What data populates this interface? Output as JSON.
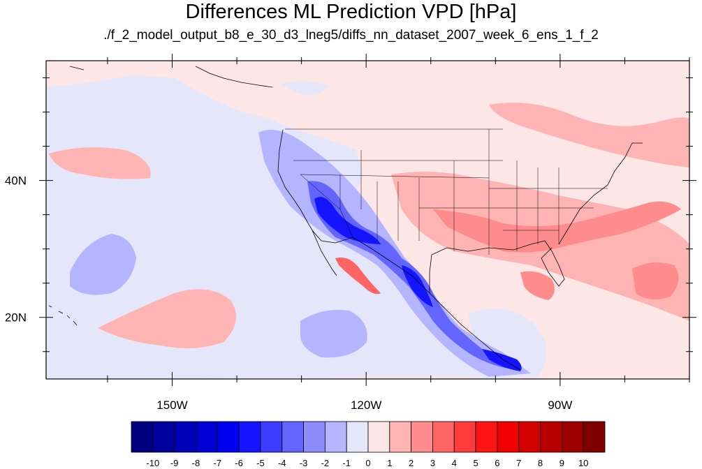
{
  "title": "Differences ML Prediction VPD [hPa]",
  "subtitle": "./f_2_model_output_b8_e_30_d3_lneg5/diffs_nn_dataset_2007_week_6_ens_1_f_2",
  "map": {
    "lon_range": [
      -169.5,
      -70
    ],
    "lat_range": [
      11,
      57.5
    ],
    "lon_ticks": [
      {
        "value": -150,
        "label": "150W"
      },
      {
        "value": -120,
        "label": "120W"
      },
      {
        "value": -90,
        "label": "90W"
      }
    ],
    "lat_ticks": [
      {
        "value": 40,
        "label": "40N"
      },
      {
        "value": 20,
        "label": "20N"
      }
    ],
    "background_color": "#fde6e6"
  },
  "colorbar": {
    "labels": [
      "-10",
      "-9",
      "-8",
      "-7",
      "-6",
      "-5",
      "-4",
      "-3",
      "-2",
      "-1",
      "0",
      "1",
      "2",
      "3",
      "4",
      "5",
      "6",
      "7",
      "8",
      "9",
      "10"
    ],
    "colors": [
      "#00007f",
      "#00009c",
      "#0000b8",
      "#0000d4",
      "#0000f0",
      "#1414ff",
      "#3c3cff",
      "#6464ff",
      "#8c8cff",
      "#b4b4ff",
      "#e6e6fa",
      "#fde6e6",
      "#ffb4b4",
      "#ff8c8c",
      "#ff6464",
      "#ff3c3c",
      "#ff1414",
      "#f00000",
      "#d40000",
      "#b80000",
      "#9c0000",
      "#7f0000"
    ]
  }
}
